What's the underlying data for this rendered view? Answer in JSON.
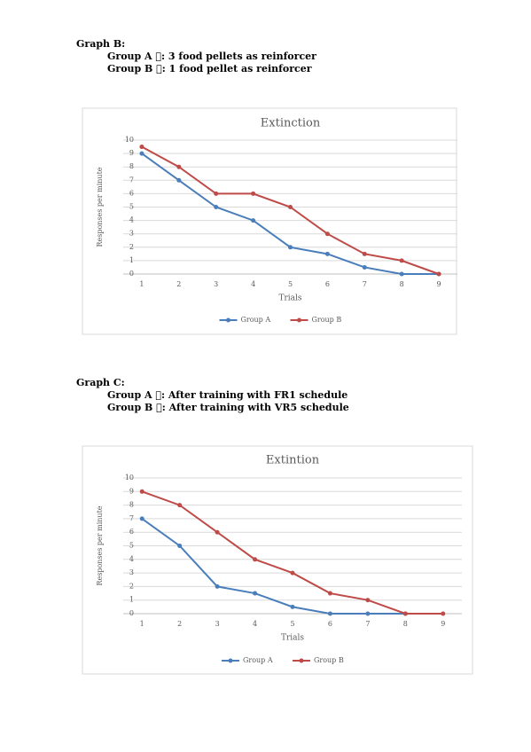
{
  "sections": [
    {
      "heading": "Graph B:",
      "lines": [
        "Group A : 3 food pellets as reinforcer",
        "Group B : 1 food pellet as reinforcer"
      ]
    },
    {
      "heading": "Graph C:",
      "lines": [
        "Group A : After training with FR1 schedule",
        "Group B : After training with VR5 schedule"
      ]
    }
  ],
  "chart_data": [
    {
      "type": "line",
      "title": "Extinction",
      "xlabel": "Trials",
      "ylabel": "Responses per minute",
      "categories": [
        1,
        2,
        3,
        4,
        5,
        6,
        7,
        8,
        9
      ],
      "series": [
        {
          "name": "Group A",
          "color": "#4a7ebb",
          "values": [
            9,
            7,
            5,
            4,
            2,
            1.5,
            0.5,
            0,
            0
          ]
        },
        {
          "name": "Group B",
          "color": "#be4b48",
          "values": [
            9.5,
            8,
            6,
            6,
            5,
            3,
            1.5,
            1,
            0
          ]
        }
      ],
      "ylim": [
        0,
        10
      ],
      "yticks": [
        0,
        1,
        2,
        3,
        4,
        5,
        6,
        7,
        8,
        9,
        10
      ],
      "grid": true,
      "legend": "bottom"
    },
    {
      "type": "line",
      "title": "Extintion",
      "xlabel": "Trials",
      "ylabel": "Responses per minute",
      "categories": [
        1,
        2,
        3,
        4,
        5,
        6,
        7,
        8,
        9
      ],
      "series": [
        {
          "name": "Group A",
          "color": "#4a7ebb",
          "values": [
            7,
            5,
            2,
            1.5,
            0.5,
            0,
            0,
            0,
            null
          ]
        },
        {
          "name": "Group B",
          "color": "#be4b48",
          "values": [
            9,
            8,
            6,
            4,
            3,
            1.5,
            1,
            0,
            0
          ]
        }
      ],
      "ylim": [
        0,
        10
      ],
      "yticks": [
        0,
        1,
        2,
        3,
        4,
        5,
        6,
        7,
        8,
        9,
        10
      ],
      "grid": true,
      "legend": "bottom"
    }
  ]
}
